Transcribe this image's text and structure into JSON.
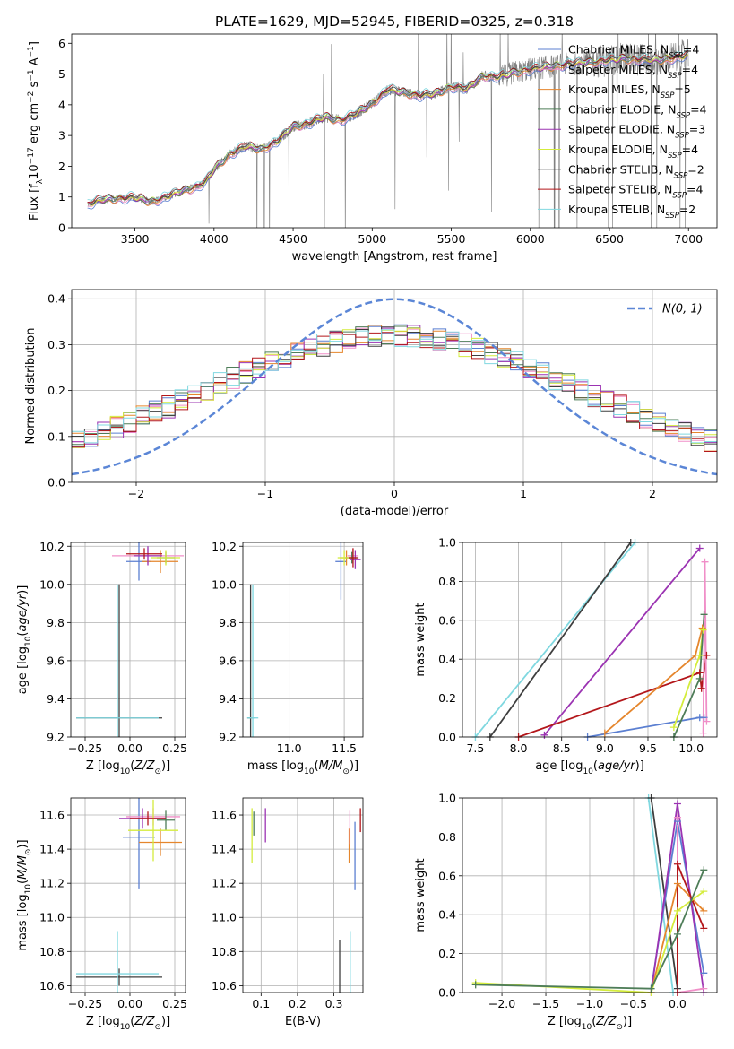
{
  "figure_title": "PLATE=1629, MJD=52945, FIBERID=0325, z=0.318",
  "colors": {
    "Chabrier MILES": "#5b7fd1",
    "Salpeter MILES": "#f08fc8",
    "Kroupa MILES": "#e5862d",
    "Chabrier ELODIE": "#4e7d58",
    "Salpeter ELODIE": "#9b33b2",
    "Kroupa ELODIE": "#d4ec3c",
    "Chabrier STELIB": "#3e3e3e",
    "Salpeter STELIB": "#b3161a",
    "Kroupa STELIB": "#80d8e0",
    "data": "#808080",
    "gaussian": "#5b86d6"
  },
  "chart_data": [
    {
      "id": "spectrum",
      "type": "line",
      "xlabel": "wavelength [Angstrom, rest frame]",
      "ylabel": "Flux [f_λ 10^-17 erg cm^-2 s^-1 A^-1]",
      "xlim": [
        3100,
        7180
      ],
      "ylim": [
        0,
        6.3
      ],
      "xticks": [
        3500,
        4000,
        4500,
        5000,
        5500,
        6000,
        6500,
        7000
      ],
      "yticks": [
        0,
        1,
        2,
        3,
        4,
        5,
        6
      ],
      "grid": false,
      "legend_position": "top-right",
      "observed_data_span": [
        3200,
        7000
      ],
      "continuum_knots": {
        "x": [
          3200,
          3300,
          3400,
          3500,
          3600,
          3700,
          3800,
          3900,
          3950,
          4000,
          4100,
          4200,
          4300,
          4400,
          4500,
          4600,
          4700,
          4800,
          4900,
          5000,
          5100,
          5200,
          5300,
          5400,
          5500,
          5600,
          5700,
          5800,
          5900,
          6000,
          6200,
          6400,
          6600,
          6800,
          7000
        ],
        "y": [
          0.75,
          0.92,
          0.96,
          0.98,
          0.85,
          1.0,
          1.2,
          1.35,
          1.5,
          1.9,
          2.4,
          2.65,
          2.55,
          2.8,
          3.3,
          3.4,
          3.6,
          3.5,
          3.7,
          4.05,
          4.5,
          4.4,
          4.3,
          4.35,
          4.6,
          4.5,
          4.95,
          4.9,
          5.05,
          5.15,
          5.3,
          5.4,
          5.5,
          5.45,
          5.6
        ]
      },
      "series": [
        {
          "name": "Chabrier MILES, N_SSP=4",
          "n_ssp": 4
        },
        {
          "name": "Salpeter MILES, N_SSP=4",
          "n_ssp": 4
        },
        {
          "name": "Kroupa MILES, N_SSP=5",
          "n_ssp": 5
        },
        {
          "name": "Chabrier ELODIE, N_SSP=4",
          "n_ssp": 4
        },
        {
          "name": "Salpeter ELODIE, N_SSP=3",
          "n_ssp": 3
        },
        {
          "name": "Kroupa ELODIE, N_SSP=4",
          "n_ssp": 4
        },
        {
          "name": "Chabrier STELIB, N_SSP=2",
          "n_ssp": 2
        },
        {
          "name": "Salpeter STELIB, N_SSP=4",
          "n_ssp": 4
        },
        {
          "name": "Kroupa STELIB, N_SSP=2",
          "n_ssp": 2
        }
      ]
    },
    {
      "id": "residuals",
      "type": "line",
      "xlabel": "(data-model)/error",
      "ylabel": "Normed distribution",
      "xlim": [
        -2.5,
        2.5
      ],
      "ylim": [
        0,
        0.42
      ],
      "xticks": [
        -2,
        -1,
        0,
        1,
        2
      ],
      "yticks": [
        0.0,
        0.1,
        0.2,
        0.3,
        0.4
      ],
      "grid": true,
      "legend_position": "top-right",
      "legend": "N(0, 1)",
      "bin_width": 0.1,
      "gaussian": {
        "mean": 0,
        "sigma": 1,
        "style": "dashed"
      }
    },
    {
      "id": "age_vs_Z",
      "type": "scatter",
      "xlabel": "Z [log10(Z/Z_⊙)]",
      "ylabel": "age [log10(age/yr)]",
      "xlim": [
        -0.33,
        0.31
      ],
      "ylim": [
        9.2,
        10.22
      ],
      "xticks": [
        -0.25,
        0.0,
        0.25
      ],
      "yticks": [
        9.2,
        9.4,
        9.6,
        9.8,
        10.0,
        10.2
      ],
      "grid": true,
      "points": [
        {
          "c": "Chabrier MILES",
          "x": 0.05,
          "y": 10.12,
          "xe": 0.07,
          "ye": 0.1
        },
        {
          "c": "Salpeter MILES",
          "x": 0.1,
          "y": 10.15,
          "xe": 0.2,
          "ye": 0.04
        },
        {
          "c": "Kroupa MILES",
          "x": 0.17,
          "y": 10.12,
          "xe": 0.1,
          "ye": 0.06
        },
        {
          "c": "Chabrier ELODIE",
          "x": 0.2,
          "y": 10.14,
          "xe": 0.05,
          "ye": 0.03
        },
        {
          "c": "Salpeter ELODIE",
          "x": 0.1,
          "y": 10.15,
          "xe": 0.08,
          "ye": 0.05
        },
        {
          "c": "Kroupa ELODIE",
          "x": 0.2,
          "y": 10.14,
          "xe": 0.08,
          "ye": 0.04
        },
        {
          "c": "Salpeter STELIB",
          "x": 0.08,
          "y": 10.16,
          "xe": 0.1,
          "ye": 0.03
        },
        {
          "c": "Chabrier STELIB",
          "x": -0.06,
          "y": 9.3,
          "xe": 0.24,
          "ye": 0.7
        },
        {
          "c": "Kroupa STELIB",
          "x": -0.07,
          "y": 9.3,
          "xe": 0.23,
          "ye": 0.7
        }
      ]
    },
    {
      "id": "age_vs_mass",
      "type": "scatter",
      "xlabel": "mass [log10(M/M_⊙)]",
      "ylabel": "",
      "xlim": [
        10.58,
        11.67
      ],
      "ylim": [
        9.2,
        10.22
      ],
      "xticks": [
        11.0,
        11.5
      ],
      "yticks": [
        9.2,
        9.4,
        9.6,
        9.8,
        10.0,
        10.2
      ],
      "grid": true,
      "points": [
        {
          "c": "Chabrier MILES",
          "x": 11.47,
          "y": 10.12,
          "xe": 0.05,
          "ye": 0.2
        },
        {
          "c": "Salpeter MILES",
          "x": 11.58,
          "y": 10.15,
          "xe": 0.05,
          "ye": 0.04
        },
        {
          "c": "Kroupa MILES",
          "x": 11.52,
          "y": 10.14,
          "xe": 0.06,
          "ye": 0.04
        },
        {
          "c": "Chabrier ELODIE",
          "x": 11.57,
          "y": 10.14,
          "xe": 0.06,
          "ye": 0.03
        },
        {
          "c": "Salpeter ELODIE",
          "x": 11.6,
          "y": 10.13,
          "xe": 0.05,
          "ye": 0.05
        },
        {
          "c": "Kroupa ELODIE",
          "x": 11.5,
          "y": 10.14,
          "xe": 0.06,
          "ye": 0.04
        },
        {
          "c": "Salpeter STELIB",
          "x": 11.58,
          "y": 10.14,
          "xe": 0.04,
          "ye": 0.05
        },
        {
          "c": "Chabrier STELIB",
          "x": 10.65,
          "y": 9.3,
          "xe": 0.03,
          "ye": 0.7
        },
        {
          "c": "Kroupa STELIB",
          "x": 10.67,
          "y": 9.3,
          "xe": 0.05,
          "ye": 0.7
        }
      ]
    },
    {
      "id": "weight_vs_age",
      "type": "line",
      "xlabel": "age [log10(age/yr)]",
      "ylabel": "mass weight",
      "xlim": [
        7.35,
        10.3
      ],
      "ylim": [
        0,
        1.0
      ],
      "xticks": [
        7.5,
        8.0,
        8.5,
        9.0,
        9.5,
        10.0
      ],
      "yticks": [
        0.0,
        0.2,
        0.4,
        0.6,
        0.8,
        1.0
      ],
      "grid": true,
      "series": [
        {
          "c": "Kroupa STELIB",
          "x": [
            7.5,
            9.35
          ],
          "y": [
            0.0,
            1.0
          ]
        },
        {
          "c": "Chabrier STELIB",
          "x": [
            7.67,
            9.3
          ],
          "y": [
            0.0,
            1.0
          ]
        },
        {
          "c": "Salpeter ELODIE",
          "x": [
            8.3,
            10.1
          ],
          "y": [
            0.01,
            0.97
          ]
        },
        {
          "c": "Salpeter STELIB",
          "x": [
            8.0,
            10.1,
            10.12,
            10.18
          ],
          "y": [
            0.0,
            0.33,
            0.25,
            0.42
          ]
        },
        {
          "c": "Kroupa MILES",
          "x": [
            9.0,
            10.05,
            10.13
          ],
          "y": [
            0.02,
            0.42,
            0.56
          ]
        },
        {
          "c": "Chabrier MILES",
          "x": [
            8.8,
            10.1,
            10.15
          ],
          "y": [
            0.0,
            0.1,
            0.1
          ]
        },
        {
          "c": "Kroupa ELODIE",
          "x": [
            9.8,
            10.1,
            10.14
          ],
          "y": [
            0.05,
            0.42,
            0.55
          ]
        },
        {
          "c": "Chabrier ELODIE",
          "x": [
            9.8,
            10.1,
            10.15
          ],
          "y": [
            0.0,
            0.3,
            0.63
          ]
        },
        {
          "c": "Salpeter MILES",
          "x": [
            10.14,
            10.16,
            10.18
          ],
          "y": [
            0.02,
            0.9,
            0.08
          ]
        }
      ]
    },
    {
      "id": "mass_vs_Z",
      "type": "scatter",
      "xlabel": "Z [log10(Z/Z_⊙)]",
      "ylabel": "mass [log10(M/M_⊙)]",
      "xlim": [
        -0.33,
        0.31
      ],
      "ylim": [
        10.56,
        11.7
      ],
      "xticks": [
        -0.25,
        0.0,
        0.25
      ],
      "yticks": [
        10.6,
        10.8,
        11.0,
        11.2,
        11.4,
        11.6
      ],
      "grid": true,
      "points": [
        {
          "c": "Chabrier MILES",
          "x": 0.05,
          "y": 11.47,
          "xe": 0.09,
          "ye": 0.3
        },
        {
          "c": "Salpeter MILES",
          "x": 0.13,
          "y": 11.59,
          "xe": 0.15,
          "ye": 0.05
        },
        {
          "c": "Kroupa MILES",
          "x": 0.17,
          "y": 11.44,
          "xe": 0.12,
          "ye": 0.08
        },
        {
          "c": "Chabrier ELODIE",
          "x": 0.2,
          "y": 11.57,
          "xe": 0.05,
          "ye": 0.06
        },
        {
          "c": "Salpeter ELODIE",
          "x": 0.07,
          "y": 11.58,
          "xe": 0.13,
          "ye": 0.06
        },
        {
          "c": "Kroupa ELODIE",
          "x": 0.13,
          "y": 11.51,
          "xe": 0.14,
          "ye": 0.18
        },
        {
          "c": "Salpeter STELIB",
          "x": 0.1,
          "y": 11.58,
          "xe": 0.1,
          "ye": 0.04
        },
        {
          "c": "Chabrier STELIB",
          "x": -0.06,
          "y": 10.65,
          "xe": 0.24,
          "ye": 0.05
        },
        {
          "c": "Kroupa STELIB",
          "x": -0.07,
          "y": 10.67,
          "xe": 0.23,
          "ye": 0.25
        }
      ]
    },
    {
      "id": "mass_vs_ebv",
      "type": "scatter",
      "xlabel": "E(B-V)",
      "ylabel": "",
      "xlim": [
        0.05,
        0.38
      ],
      "ylim": [
        10.56,
        11.7
      ],
      "xticks": [
        0.1,
        0.2,
        0.3
      ],
      "yticks": [
        10.6,
        10.8,
        11.0,
        11.2,
        11.4,
        11.6
      ],
      "grid": true,
      "points": [
        {
          "c": "Kroupa ELODIE",
          "x": 0.075,
          "y": 11.48,
          "ye": 0.16
        },
        {
          "c": "Chabrier ELODIE",
          "x": 0.08,
          "y": 11.55,
          "ye": 0.07
        },
        {
          "c": "Salpeter ELODIE",
          "x": 0.112,
          "y": 11.54,
          "ye": 0.1
        },
        {
          "c": "Kroupa MILES",
          "x": 0.342,
          "y": 11.42,
          "ye": 0.1
        },
        {
          "c": "Salpeter MILES",
          "x": 0.344,
          "y": 11.53,
          "ye": 0.1
        },
        {
          "c": "Chabrier MILES",
          "x": 0.358,
          "y": 11.36,
          "ye": 0.2
        },
        {
          "c": "Salpeter STELIB",
          "x": 0.373,
          "y": 11.57,
          "ye": 0.07
        },
        {
          "c": "Chabrier STELIB",
          "x": 0.316,
          "y": 10.65,
          "ye": 0.22
        },
        {
          "c": "Kroupa STELIB",
          "x": 0.345,
          "y": 10.68,
          "ye": 0.24
        }
      ]
    },
    {
      "id": "weight_vs_Z",
      "type": "line",
      "xlabel": "Z [log10(Z/Z_⊙)]",
      "ylabel": "mass weight",
      "xlim": [
        -2.45,
        0.45
      ],
      "ylim": [
        0,
        1.0
      ],
      "xticks": [
        -2.0,
        -1.5,
        -1.0,
        -0.5,
        0.0
      ],
      "yticks": [
        0.0,
        0.2,
        0.4,
        0.6,
        0.8,
        1.0
      ],
      "grid": true,
      "series": [
        {
          "c": "Kroupa STELIB",
          "x": [
            -0.33,
            -0.05
          ],
          "y": [
            1.0,
            0.0
          ]
        },
        {
          "c": "Chabrier STELIB",
          "x": [
            -0.3,
            0.0
          ],
          "y": [
            1.0,
            0.02
          ]
        },
        {
          "c": "Chabrier MILES",
          "x": [
            -0.3,
            0.0,
            0.3
          ],
          "y": [
            0.02,
            0.88,
            0.1
          ]
        },
        {
          "c": "Salpeter ELODIE",
          "x": [
            -0.3,
            0.0,
            0.3
          ],
          "y": [
            0.0,
            0.97,
            0.0
          ]
        },
        {
          "c": "Salpeter MILES",
          "x": [
            0.0,
            0.0,
            0.3
          ],
          "y": [
            0.9,
            0.0,
            0.02
          ]
        },
        {
          "c": "Kroupa MILES",
          "x": [
            -0.3,
            0.0,
            0.3
          ],
          "y": [
            0.0,
            0.56,
            0.42
          ]
        },
        {
          "c": "Salpeter STELIB",
          "x": [
            0.0,
            0.0,
            0.3
          ],
          "y": [
            0.0,
            0.66,
            0.33
          ]
        },
        {
          "c": "Kroupa ELODIE",
          "x": [
            -2.3,
            -0.3,
            0.0,
            0.3
          ],
          "y": [
            0.05,
            0.0,
            0.42,
            0.52
          ]
        },
        {
          "c": "Chabrier ELODIE",
          "x": [
            -2.3,
            -0.3,
            0.0,
            0.3
          ],
          "y": [
            0.04,
            0.02,
            0.3,
            0.63
          ]
        }
      ]
    }
  ]
}
